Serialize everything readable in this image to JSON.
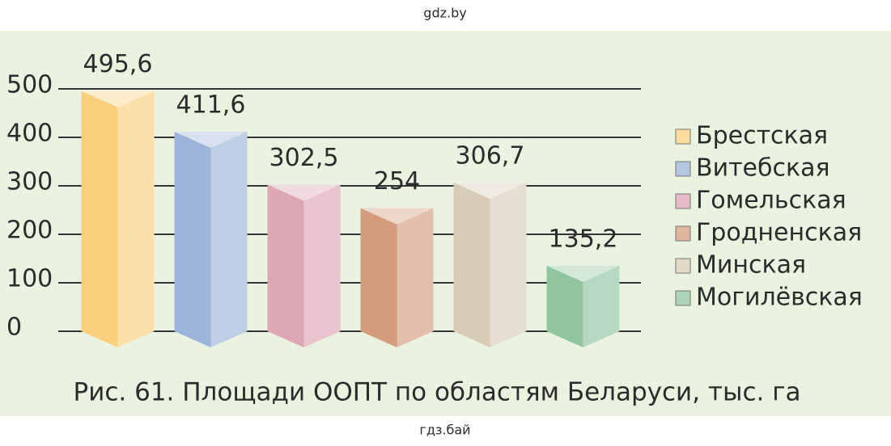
{
  "header": {
    "text": "gdz.by"
  },
  "footer": {
    "text": "гдз.бай"
  },
  "chart_data": {
    "type": "bar",
    "title": "Рис. 61. Площади ООПТ по областям Беларуси, тыс. га",
    "categories": [
      "Брестская",
      "Витебская",
      "Гомельская",
      "Гродненская",
      "Минская",
      "Могилёвская"
    ],
    "values": [
      495.6,
      411.6,
      302.5,
      254,
      306.7,
      135.2
    ],
    "value_labels": [
      "495,6",
      "411,6",
      "302,5",
      "254",
      "306,7",
      "135,2"
    ],
    "colors": [
      "#fbd07c",
      "#9bb4d7",
      "#dca6b3",
      "#d39c7c",
      "#d9ccb6",
      "#90c59f"
    ],
    "ylim": [
      0,
      500
    ],
    "yticks": [
      0,
      100,
      200,
      300,
      400,
      500
    ],
    "grid": true,
    "legend": "right"
  }
}
